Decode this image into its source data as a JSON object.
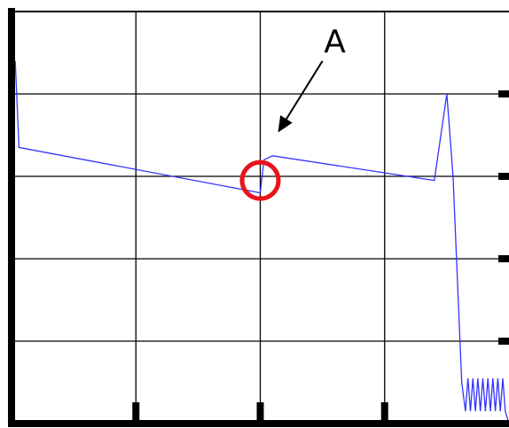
{
  "chart_data": {
    "type": "line",
    "title": "",
    "xlabel": "",
    "ylabel": "",
    "xlim": [
      0,
      4
    ],
    "ylim": [
      0,
      5
    ],
    "grid": true,
    "x_major_ticks": [
      1,
      2,
      3
    ],
    "y_major_ticks": [
      1,
      2,
      3,
      4
    ],
    "line_color": "#3333ff",
    "series": [
      {
        "values": [
          [
            0.03,
            4.4
          ],
          [
            0.06,
            3.35
          ],
          [
            2.0,
            2.8
          ],
          [
            2.03,
            3.2
          ],
          [
            2.1,
            3.25
          ],
          [
            3.4,
            2.95
          ],
          [
            3.5,
            4.0
          ],
          [
            3.55,
            3.0
          ],
          [
            3.62,
            0.5
          ],
          [
            3.65,
            0.15
          ],
          [
            3.67,
            0.55
          ],
          [
            3.69,
            0.15
          ],
          [
            3.71,
            0.55
          ],
          [
            3.73,
            0.15
          ],
          [
            3.75,
            0.55
          ],
          [
            3.77,
            0.15
          ],
          [
            3.79,
            0.55
          ],
          [
            3.81,
            0.15
          ],
          [
            3.83,
            0.55
          ],
          [
            3.85,
            0.15
          ],
          [
            3.87,
            0.55
          ],
          [
            3.89,
            0.15
          ],
          [
            3.91,
            0.55
          ],
          [
            3.93,
            0.15
          ],
          [
            3.95,
            0.55
          ],
          [
            3.97,
            0.15
          ],
          [
            4.0,
            0.0
          ]
        ]
      }
    ],
    "annotations": [
      {
        "label": "A",
        "circle_center": [
          2.0,
          2.95
        ],
        "circle_radius_x": 0.38,
        "circle_color": "#e8131b",
        "arrow_from": [
          2.5,
          4.4
        ],
        "arrow_to": [
          2.15,
          3.55
        ]
      }
    ]
  }
}
